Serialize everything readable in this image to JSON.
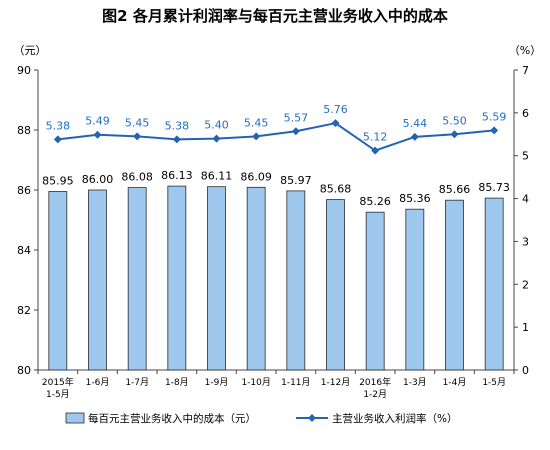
{
  "chart_data": {
    "type": "bar",
    "title": "图2  各月累计利润率与每百元主营业务收入中的成本",
    "left_unit": "（元）",
    "right_unit": "（%）",
    "categories": [
      [
        "2015年",
        "1-5月"
      ],
      [
        "1-6月"
      ],
      [
        "1-7月"
      ],
      [
        "1-8月"
      ],
      [
        "1-9月"
      ],
      [
        "1-10月"
      ],
      [
        "1-11月"
      ],
      [
        "1-12月"
      ],
      [
        "2016年",
        "1-2月"
      ],
      [
        "1-3月"
      ],
      [
        "1-4月"
      ],
      [
        "1-5月"
      ]
    ],
    "left_axis": {
      "min": 80,
      "max": 90,
      "ticks": [
        80,
        82,
        84,
        86,
        88,
        90
      ]
    },
    "right_axis": {
      "min": 0,
      "max": 7,
      "ticks": [
        0,
        1,
        2,
        3,
        4,
        5,
        6,
        7
      ]
    },
    "grid": false,
    "legend_position": "bottom",
    "series": [
      {
        "name": "每百元主营业务收入中的成本（元）",
        "type": "bar",
        "axis": "left",
        "color": "#9fc8ee",
        "values": [
          85.95,
          86.0,
          86.08,
          86.13,
          86.11,
          86.09,
          85.97,
          85.68,
          85.26,
          85.36,
          85.66,
          85.73
        ],
        "labels": [
          "85.95",
          "86.00",
          "86.08",
          "86.13",
          "86.11",
          "86.09",
          "85.97",
          "85.68",
          "85.26",
          "85.36",
          "85.66",
          "85.73"
        ]
      },
      {
        "name": "主营业务收入利润率（%）",
        "type": "line",
        "axis": "right",
        "color": "#2264b3",
        "label_color": "#1f6fc4",
        "values": [
          5.38,
          5.49,
          5.45,
          5.38,
          5.4,
          5.45,
          5.57,
          5.76,
          5.12,
          5.44,
          5.5,
          5.59
        ],
        "labels": [
          "5.38",
          "5.49",
          "5.45",
          "5.38",
          "5.40",
          "5.45",
          "5.57",
          "5.76",
          "5.12",
          "5.44",
          "5.50",
          "5.59"
        ]
      }
    ]
  }
}
